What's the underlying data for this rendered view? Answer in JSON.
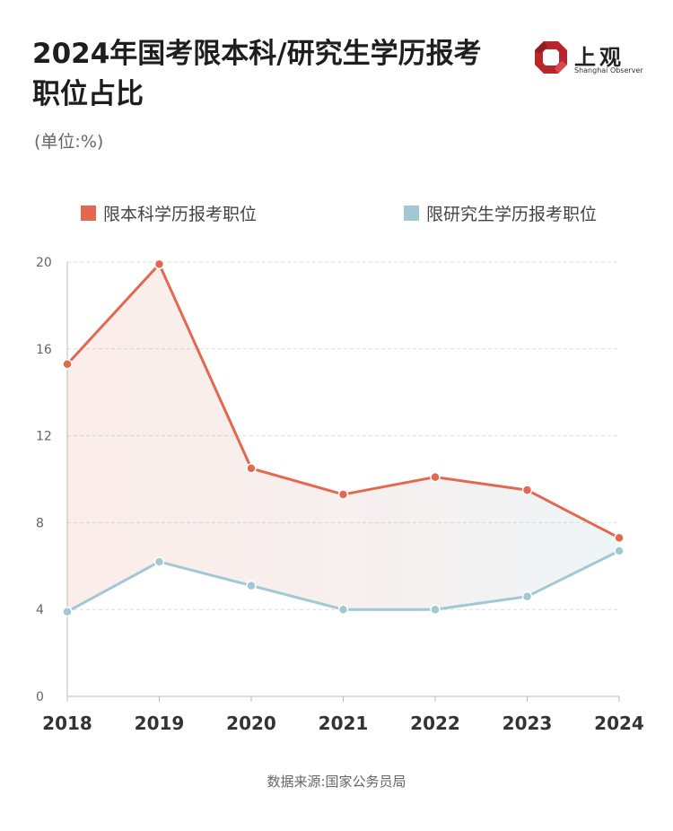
{
  "title": "2024年国考限本科/研究生学历报考职位占比",
  "unit": "(单位:%)",
  "logo": {
    "name": "上观",
    "subtitle": "Shanghai Observer",
    "color": "#b8262b"
  },
  "source": "数据来源:国家公务员局",
  "chart_data": {
    "type": "line",
    "categories": [
      "2018",
      "2019",
      "2020",
      "2021",
      "2022",
      "2023",
      "2024"
    ],
    "series": [
      {
        "name": "限本科学历报考职位",
        "color": "#e2694f",
        "values": [
          15.3,
          19.9,
          10.5,
          9.3,
          10.1,
          9.5,
          7.3
        ]
      },
      {
        "name": "限研究生学历报考职位",
        "color": "#a2c8d4",
        "values": [
          3.9,
          6.2,
          5.1,
          4.0,
          4.0,
          4.6,
          6.7
        ]
      }
    ],
    "yticks": [
      0,
      4,
      8,
      12,
      16,
      20
    ],
    "ylim": [
      0,
      20
    ],
    "grid": true,
    "legend": "top"
  }
}
